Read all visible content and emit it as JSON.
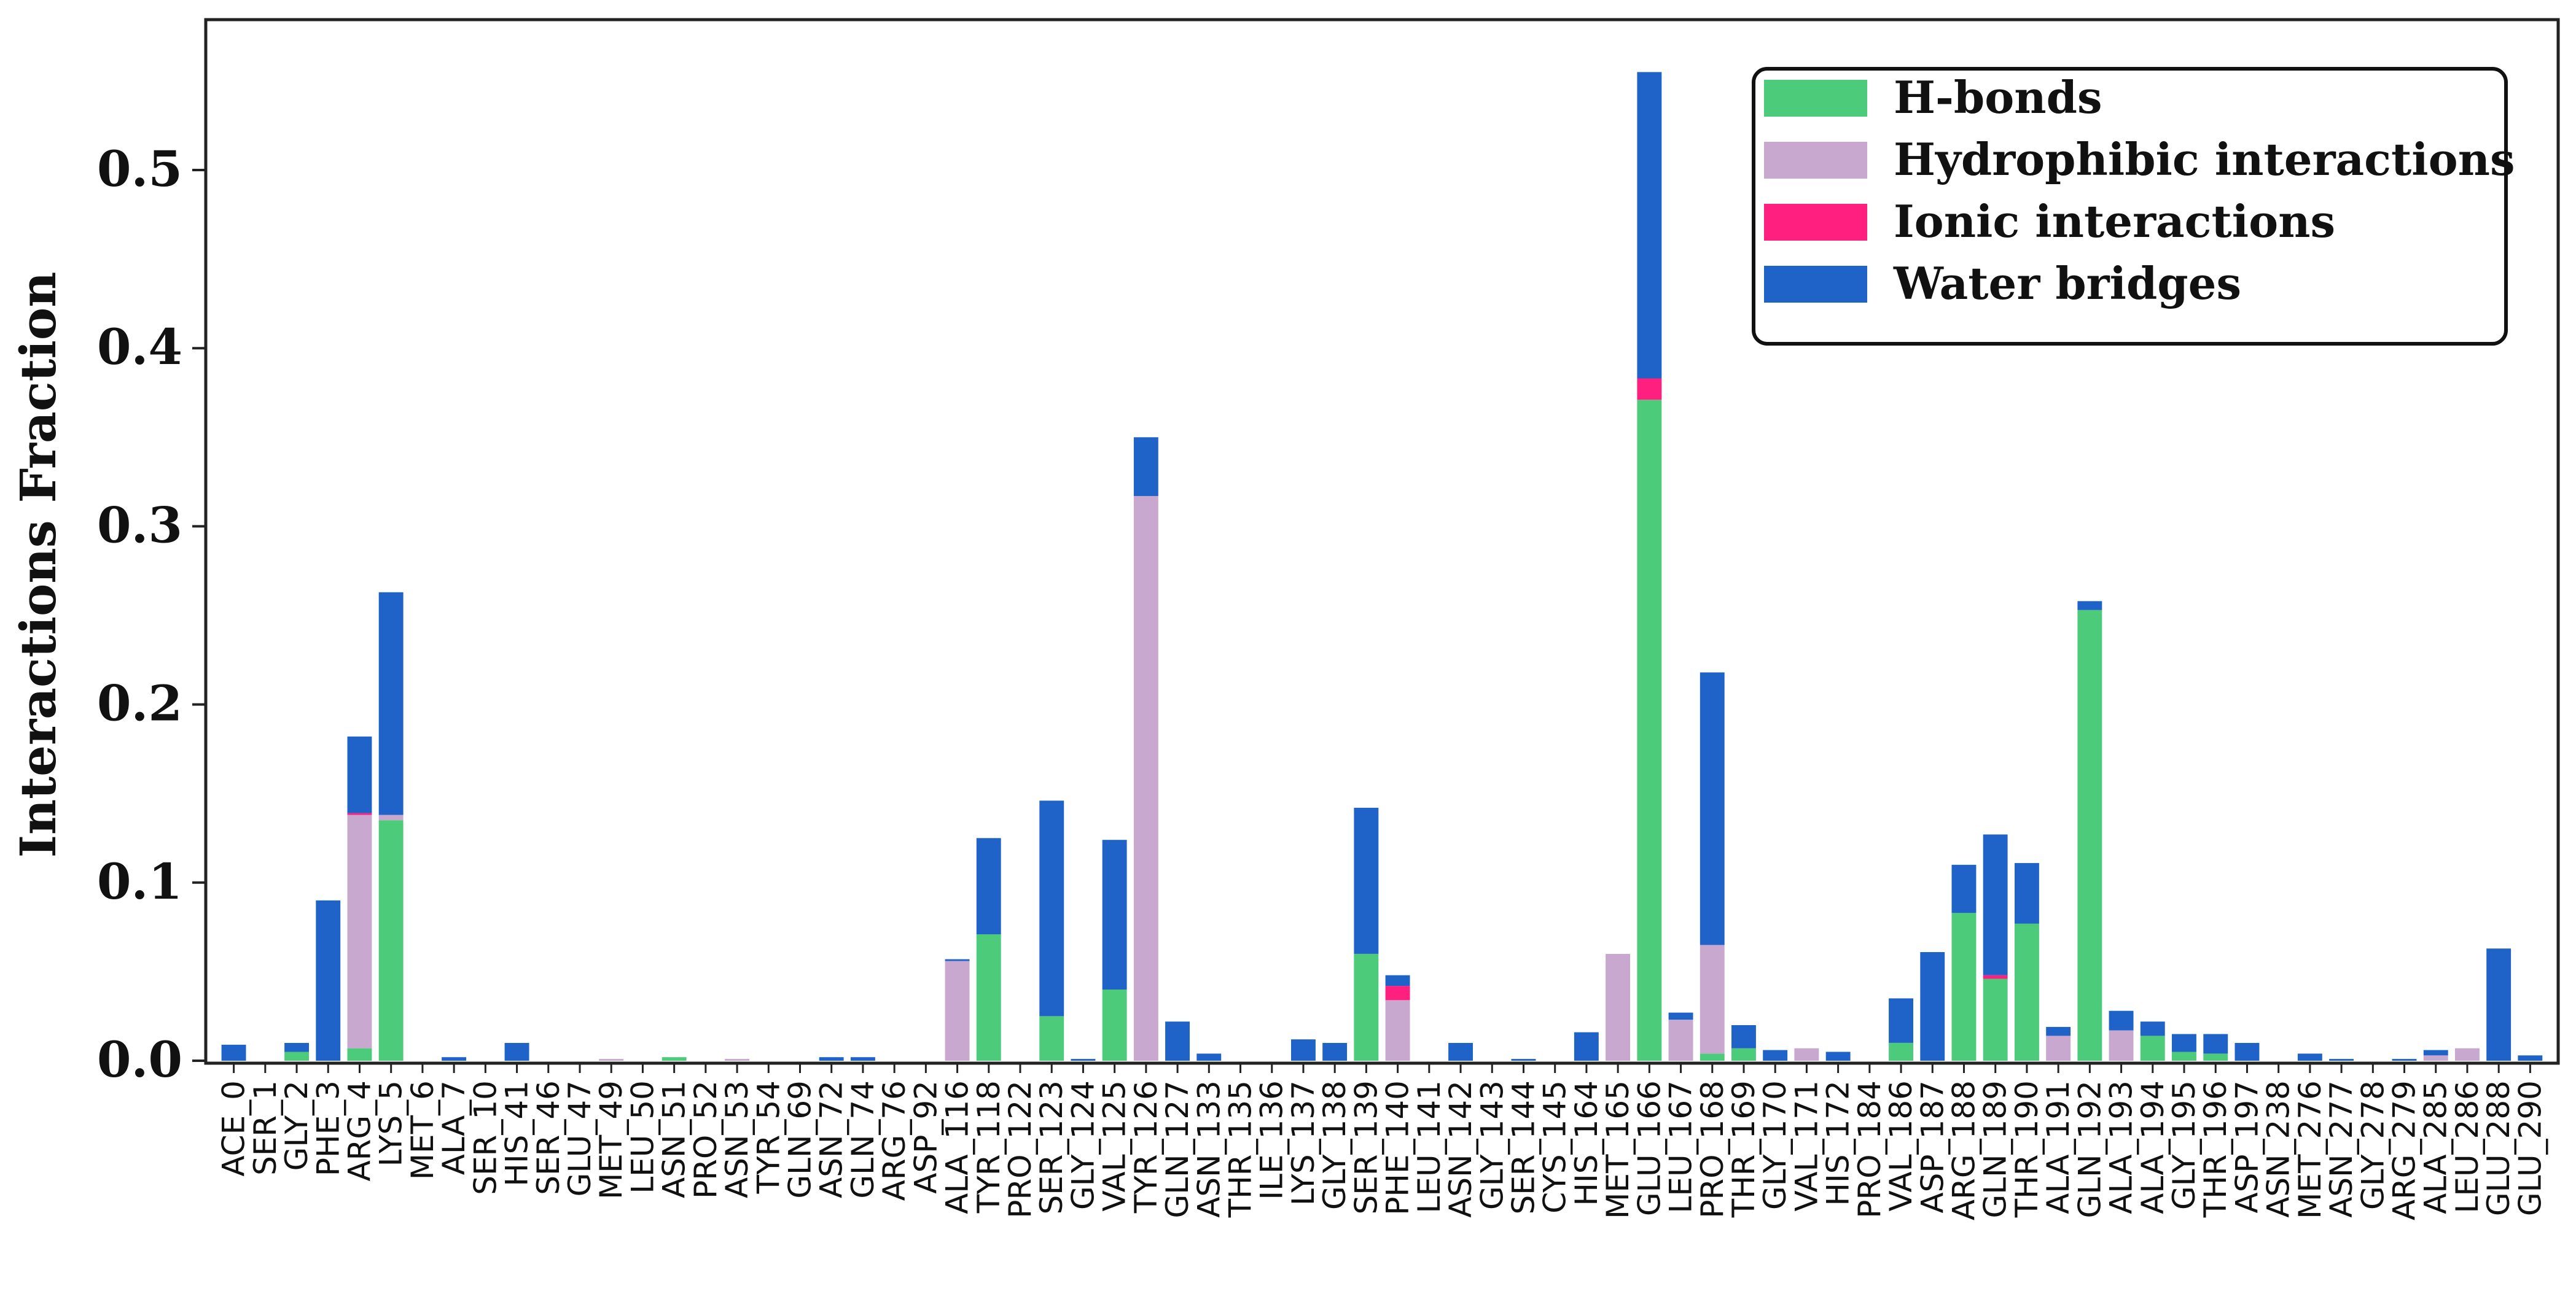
{
  "chart_data": {
    "type": "bar",
    "stacked": true,
    "title": "",
    "xlabel": "",
    "ylabel": "Interactions Fraction",
    "ylim": [
      0,
      0.56
    ],
    "yticks": [
      "0.0",
      "0.1",
      "0.2",
      "0.3",
      "0.4",
      "0.5"
    ],
    "legend_position": "top-right",
    "series_colors": [
      "#4ccb7a",
      "#c8a8cf",
      "#ff1f7f",
      "#1f63c9"
    ],
    "categories": [
      "ACE_0",
      "SER_1",
      "GLY_2",
      "PHE_3",
      "ARG_4",
      "LYS_5",
      "MET_6",
      "ALA_7",
      "SER_10",
      "HIS_41",
      "SER_46",
      "GLU_47",
      "MET_49",
      "LEU_50",
      "ASN_51",
      "PRO_52",
      "ASN_53",
      "TYR_54",
      "GLN_69",
      "ASN_72",
      "GLN_74",
      "ARG_76",
      "ASP_92",
      "ALA_116",
      "TYR_118",
      "PRO_122",
      "SER_123",
      "GLY_124",
      "VAL_125",
      "TYR_126",
      "GLN_127",
      "ASN_133",
      "THR_135",
      "ILE_136",
      "LYS_137",
      "GLY_138",
      "SER_139",
      "PHE_140",
      "LEU_141",
      "ASN_142",
      "GLY_143",
      "SER_144",
      "CYS_145",
      "HIS_164",
      "MET_165",
      "GLU_166",
      "LEU_167",
      "PRO_168",
      "THR_169",
      "GLY_170",
      "VAL_171",
      "HIS_172",
      "PRO_184",
      "VAL_186",
      "ASP_187",
      "ARG_188",
      "GLN_189",
      "THR_190",
      "ALA_191",
      "GLN_192",
      "ALA_193",
      "ALA_194",
      "GLY_195",
      "THR_196",
      "ASP_197",
      "ASN_238",
      "MET_276",
      "ASN_277",
      "GLY_278",
      "ARG_279",
      "ALA_285",
      "LEU_286",
      "GLU_288",
      "GLU_290"
    ],
    "series": [
      {
        "name": "H-bonds",
        "values": [
          0,
          0,
          0.005,
          0,
          0.007,
          0.135,
          0,
          0,
          0,
          0,
          0,
          0,
          0,
          0,
          0.002,
          0,
          0,
          0,
          0,
          0,
          0,
          0,
          0,
          0,
          0.071,
          0,
          0.025,
          0,
          0.04,
          0,
          0,
          0,
          0,
          0,
          0,
          0,
          0.06,
          0,
          0,
          0,
          0,
          0,
          0,
          0,
          0,
          0.371,
          0,
          0.004,
          0.007,
          0,
          0,
          0,
          0,
          0.01,
          0,
          0.083,
          0.046,
          0.077,
          0,
          0.253,
          0,
          0.014,
          0.005,
          0.004,
          0,
          0,
          0,
          0,
          0,
          0,
          0,
          0,
          0,
          0
        ]
      },
      {
        "name": "Hydrophibic interactions",
        "values": [
          0,
          0,
          0,
          0,
          0.131,
          0.003,
          0,
          0,
          0,
          0,
          0,
          0,
          0.001,
          0,
          0,
          0,
          0.001,
          0,
          0,
          0,
          0,
          0,
          0,
          0.056,
          0,
          0,
          0,
          0,
          0,
          0.317,
          0,
          0,
          0,
          0,
          0,
          0,
          0,
          0.034,
          0,
          0,
          0,
          0,
          0,
          0,
          0.06,
          0,
          0.023,
          0.061,
          0,
          0,
          0.007,
          0,
          0,
          0,
          0,
          0,
          0,
          0,
          0.014,
          0,
          0.017,
          0,
          0,
          0,
          0,
          0,
          0,
          0,
          0,
          0,
          0.003,
          0.007,
          0,
          0
        ]
      },
      {
        "name": "Ionic interactions",
        "values": [
          0,
          0,
          0,
          0,
          0.001,
          0,
          0,
          0,
          0,
          0,
          0,
          0,
          0,
          0,
          0,
          0,
          0,
          0,
          0,
          0,
          0,
          0,
          0,
          0,
          0,
          0,
          0,
          0,
          0,
          0,
          0,
          0,
          0,
          0,
          0,
          0,
          0,
          0.008,
          0,
          0,
          0,
          0,
          0,
          0,
          0,
          0.012,
          0,
          0,
          0,
          0,
          0,
          0,
          0,
          0,
          0,
          0,
          0.002,
          0,
          0,
          0,
          0,
          0,
          0,
          0,
          0,
          0,
          0,
          0,
          0,
          0,
          0,
          0,
          0,
          0
        ]
      },
      {
        "name": "Water bridges",
        "values": [
          0.009,
          0,
          0.005,
          0.09,
          0.043,
          0.125,
          0,
          0.002,
          0,
          0.01,
          0,
          0,
          0,
          0,
          0,
          0,
          0,
          0,
          0,
          0.002,
          0.002,
          0,
          0,
          0.001,
          0.054,
          0,
          0.121,
          0.001,
          0.084,
          0.033,
          0.022,
          0.004,
          0,
          0,
          0.012,
          0.01,
          0.082,
          0.006,
          0,
          0.01,
          0,
          0.001,
          0,
          0.016,
          0,
          0.172,
          0.004,
          0.153,
          0.013,
          0.006,
          0,
          0.005,
          0,
          0.025,
          0.061,
          0.027,
          0.079,
          0.034,
          0.005,
          0.005,
          0.011,
          0.008,
          0.01,
          0.011,
          0.01,
          0,
          0.004,
          0.001,
          0,
          0.001,
          0.003,
          0,
          0.063,
          0.003
        ]
      }
    ]
  }
}
